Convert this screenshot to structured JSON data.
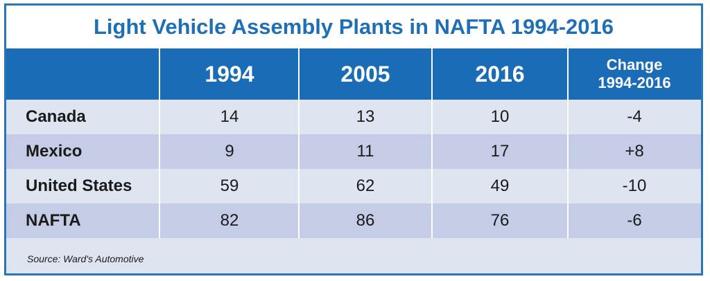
{
  "chart_data": {
    "type": "table",
    "title": "Light Vehicle Assembly Plants in NAFTA 1994-2016",
    "columns": [
      "",
      "1994",
      "2005",
      "2016",
      "Change 1994-2016"
    ],
    "change_header_lines": [
      "Change",
      "1994-2016"
    ],
    "rows": [
      {
        "label": "Canada",
        "values": [
          "14",
          "13",
          "10",
          "-4"
        ]
      },
      {
        "label": "Mexico",
        "values": [
          "9",
          "11",
          "17",
          "+8"
        ]
      },
      {
        "label": "United States",
        "values": [
          "59",
          "62",
          "49",
          "-10"
        ]
      },
      {
        "label": "NAFTA",
        "values": [
          "82",
          "86",
          "76",
          "-6"
        ]
      }
    ],
    "source": "Source: Ward's Automotive",
    "colors": {
      "header": "#1a6cb6",
      "title": "#1e6fb5",
      "row_light": "#dfe4f1",
      "row_dark": "#c4cce6",
      "border": "#2a74b8"
    }
  }
}
